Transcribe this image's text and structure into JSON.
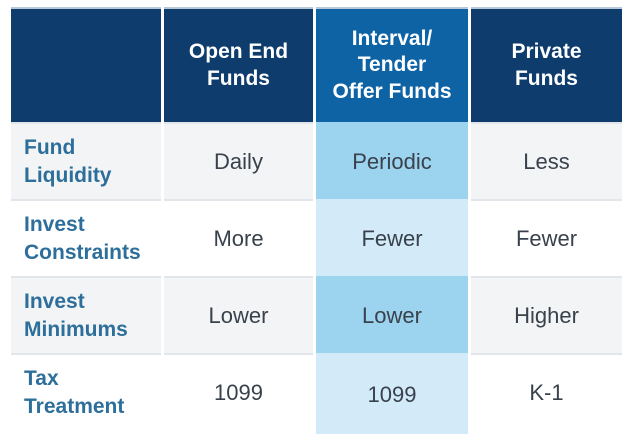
{
  "table": {
    "corner": "",
    "column_headers": [
      "Open End\nFunds",
      "Interval/\nTender\nOffer Funds",
      "Private\nFunds"
    ],
    "rows": [
      {
        "label": "Fund\nLiquidity",
        "cells": [
          "Daily",
          "Periodic",
          "Less"
        ]
      },
      {
        "label": "Invest\nConstraints",
        "cells": [
          "More",
          "Fewer",
          "Fewer"
        ]
      },
      {
        "label": "Invest\nMinimums",
        "cells": [
          "Lower",
          "Lower",
          "Higher"
        ]
      },
      {
        "label": "Tax\nTreatment",
        "cells": [
          "1099",
          "1099",
          "K-1"
        ]
      }
    ]
  },
  "colors": {
    "header_navy": "#0d3c6d",
    "header_highlight_blue": "#0e63a5",
    "highlight_cell_blue": "#9cd3ef",
    "highlight_cell_light_blue": "#d3eaf8",
    "row_alt_gray": "#f3f4f6",
    "row_white": "#ffffff",
    "row_label_text": "#2d6f9a",
    "cell_text": "#39424c",
    "header_text": "#ffffff"
  }
}
